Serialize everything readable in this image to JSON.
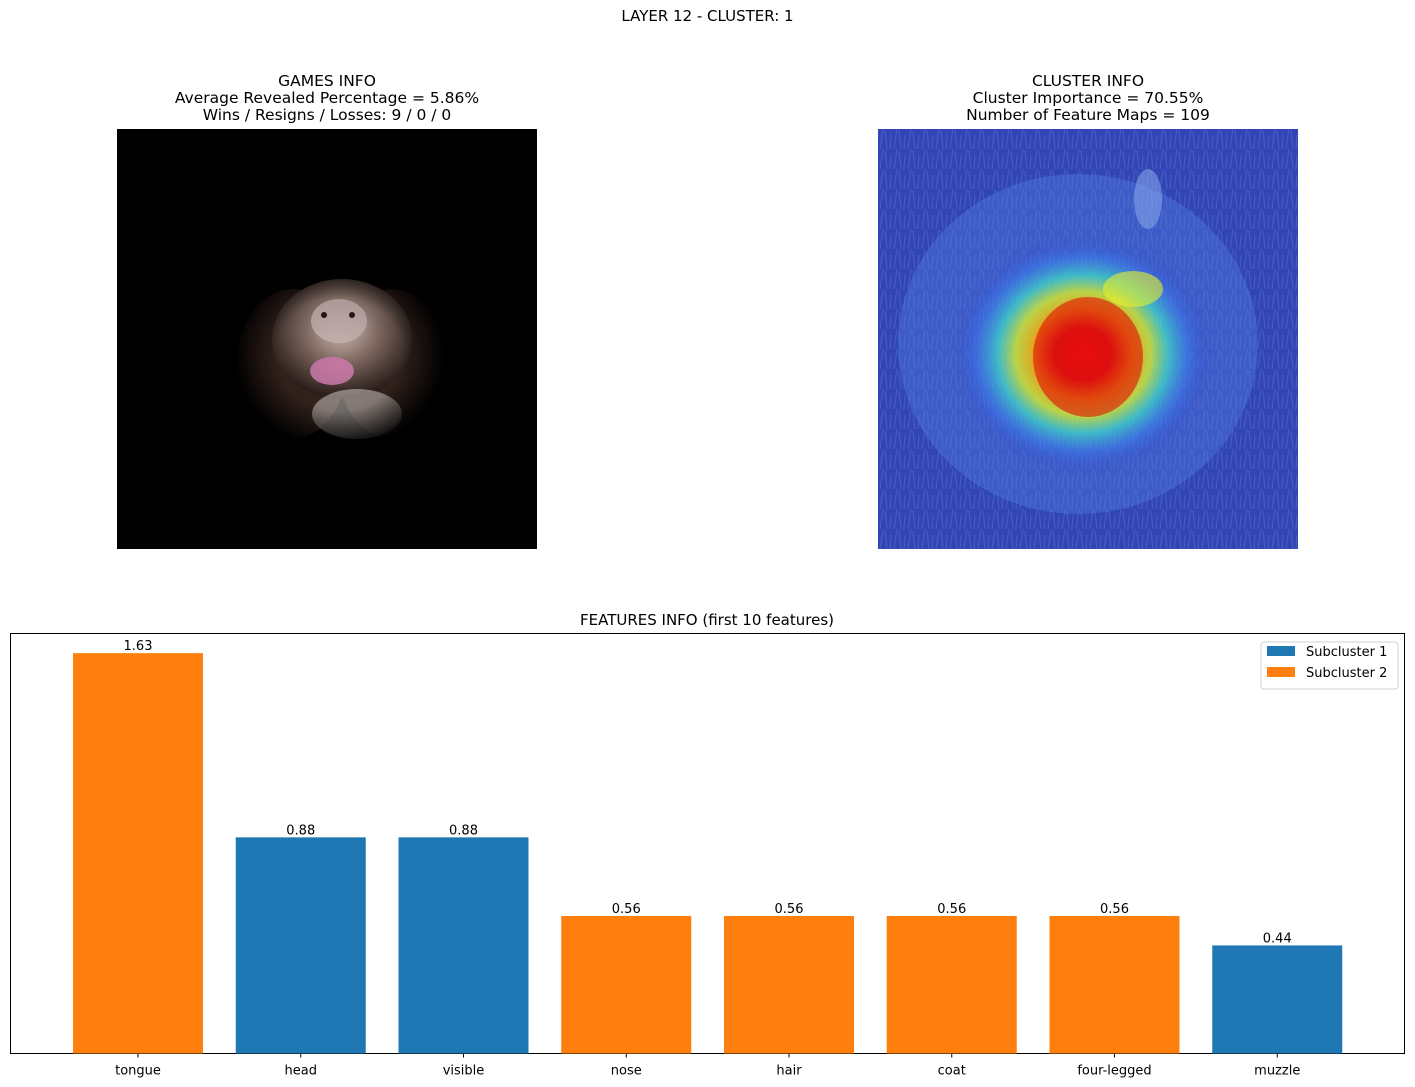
{
  "figure": {
    "suptitle": "LAYER 12 - CLUSTER: 1"
  },
  "games_panel": {
    "title": "GAMES INFO",
    "line2": "Average Revealed Percentage = 5.86%",
    "line3": "Wins / Resigns / Losses: 9 / 0 / 0"
  },
  "cluster_panel": {
    "title": "CLUSTER INFO",
    "line2": "Cluster Importance = 70.55%",
    "line3": "Number of Feature Maps = 109"
  },
  "chart_data": {
    "type": "bar",
    "title": "FEATURES INFO (first 10 features)",
    "xlabel": "",
    "ylabel": "",
    "categories": [
      "tongue",
      "head",
      "visible",
      "nose",
      "hair",
      "coat",
      "four-legged",
      "muzzle"
    ],
    "values": [
      1.63,
      0.88,
      0.88,
      0.56,
      0.56,
      0.56,
      0.56,
      0.44
    ],
    "value_labels": [
      "1.63",
      "0.88",
      "0.88",
      "0.56",
      "0.56",
      "0.56",
      "0.56",
      "0.44"
    ],
    "subcluster": [
      2,
      1,
      1,
      2,
      2,
      2,
      2,
      1
    ],
    "series": [
      {
        "name": "Subcluster 1",
        "color": "#1f77b4"
      },
      {
        "name": "Subcluster 2",
        "color": "#ff7f0e"
      }
    ],
    "ylim": [
      0,
      1.71
    ],
    "y_axis_visible": false,
    "grid": false,
    "legend_position": "top-right"
  }
}
